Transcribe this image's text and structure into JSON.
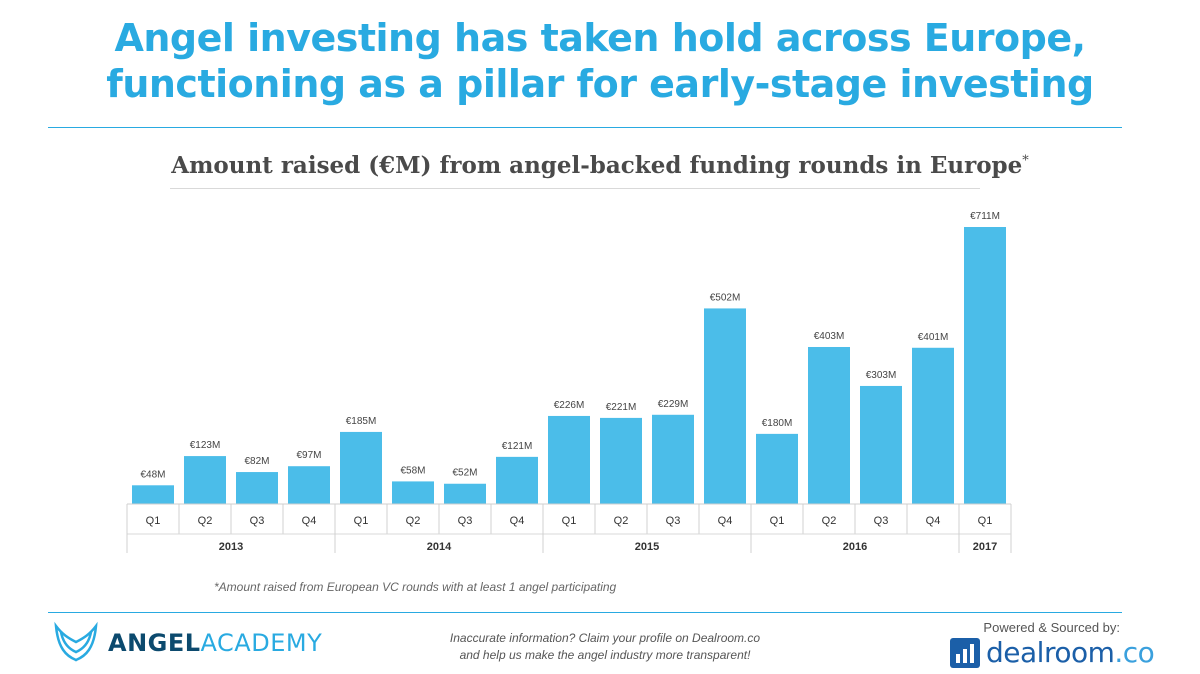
{
  "header": {
    "line1": "Angel investing has taken hold across Europe,",
    "line2": "functioning as a pillar for early-stage investing"
  },
  "chart_data": {
    "type": "bar",
    "title": "Amount raised (€M) from angel-backed funding rounds in Europe",
    "title_marker": "*",
    "unit": "€M",
    "bar_color": "#4bbde9",
    "ylim": [
      0,
      711
    ],
    "categories": [
      "Q1",
      "Q2",
      "Q3",
      "Q4",
      "Q1",
      "Q2",
      "Q3",
      "Q4",
      "Q1",
      "Q2",
      "Q3",
      "Q4",
      "Q1",
      "Q2",
      "Q3",
      "Q4",
      "Q1"
    ],
    "values": [
      48,
      123,
      82,
      97,
      185,
      58,
      52,
      121,
      226,
      221,
      229,
      502,
      180,
      403,
      303,
      401,
      711
    ],
    "value_labels": [
      "€48M",
      "€123M",
      "€82M",
      "€97M",
      "€185M",
      "€58M",
      "€52M",
      "€121M",
      "€226M",
      "€221M",
      "€229M",
      "€502M",
      "€180M",
      "€403M",
      "€303M",
      "€401M",
      "€711M"
    ],
    "year_groups": [
      {
        "label": "2013",
        "count": 4
      },
      {
        "label": "2014",
        "count": 4
      },
      {
        "label": "2015",
        "count": 4
      },
      {
        "label": "2016",
        "count": 4
      },
      {
        "label": "2017",
        "count": 1
      }
    ]
  },
  "footnote": "*Amount raised from European VC rounds with at least 1 angel participating",
  "footer": {
    "brand_part1": "ANGEL",
    "brand_part2": "ACADEMY",
    "note_line1": "Inaccurate information? Claim your profile on Dealroom.co",
    "note_line2": "and help us make the angel industry more transparent!",
    "powered": "Powered & Sourced by:",
    "dealroom_word": "dealroom",
    "dealroom_suffix": ".co"
  },
  "colors": {
    "accent": "#29aae1",
    "bar": "#4bbde9",
    "dark_text": "#4a4a4a"
  }
}
